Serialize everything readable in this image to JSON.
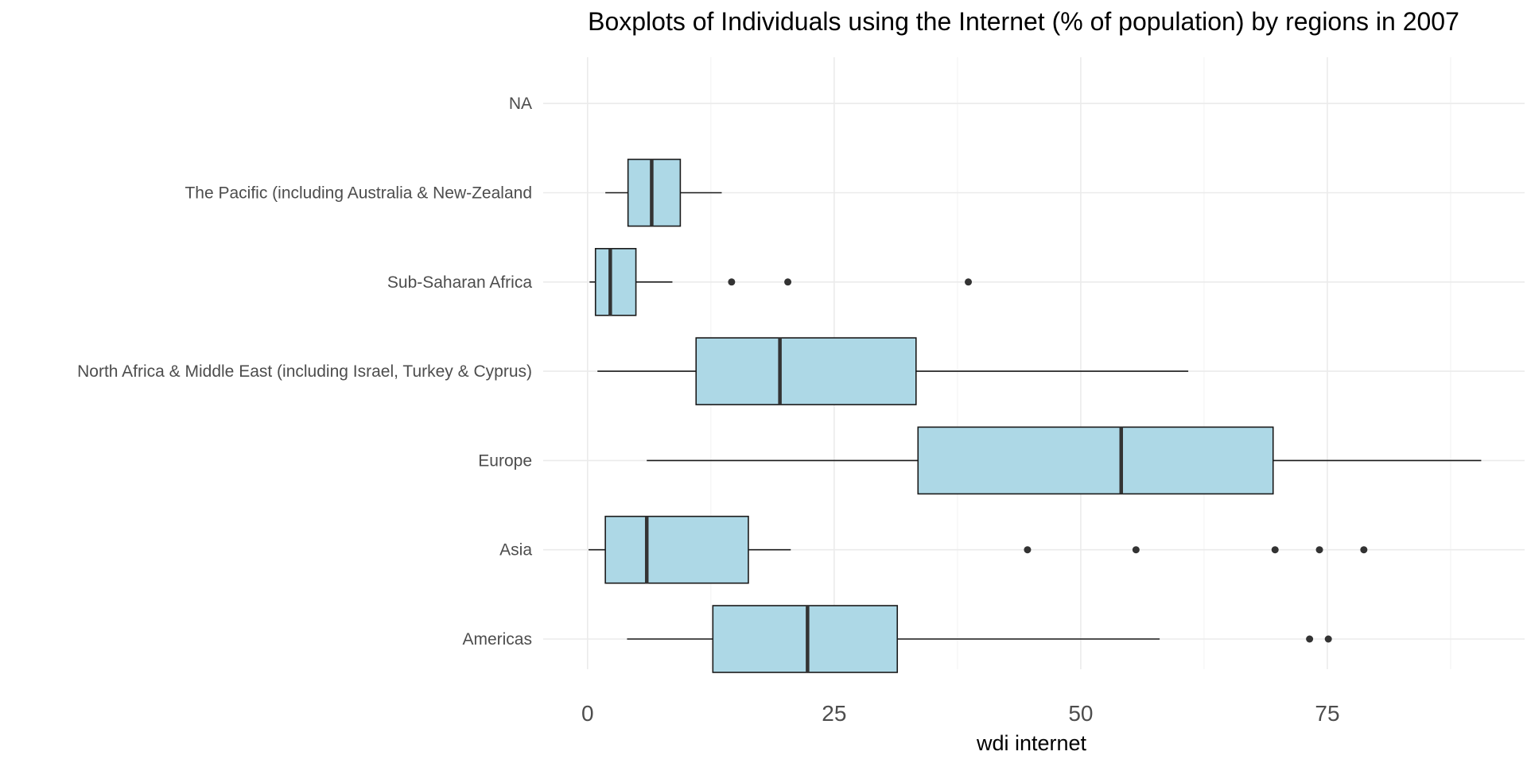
{
  "chart_data": {
    "type": "boxplot",
    "title": "Boxplots of Individuals using the Internet (% of population) by regions in 2007",
    "xlabel": "wdi internet",
    "ylabel": "",
    "orientation": "horizontal",
    "xlim": [
      -4.5,
      95
    ],
    "x_ticks": [
      0,
      25,
      50,
      75
    ],
    "x_tick_labels": [
      "0",
      "25",
      "50",
      "75"
    ],
    "x_minor_ticks": [
      12.5,
      37.5,
      62.5,
      87.5
    ],
    "grid": true,
    "categories": [
      "Americas",
      "Asia",
      "Europe",
      "North Africa & Middle East (including Israel, Turkey & Cyprus)",
      "Sub-Saharan Africa",
      "The Pacific (including Australia & New-Zealand",
      "NA"
    ],
    "boxes": [
      {
        "category": "Americas",
        "whisker_low": 4.0,
        "q1": 12.7,
        "median": 22.3,
        "q3": 31.4,
        "whisker_high": 58.0,
        "outliers": [
          73.2,
          75.1
        ]
      },
      {
        "category": "Asia",
        "whisker_low": 0.1,
        "q1": 1.8,
        "median": 6.0,
        "q3": 16.3,
        "whisker_high": 20.6,
        "outliers": [
          44.6,
          55.6,
          69.7,
          74.2,
          78.7
        ]
      },
      {
        "category": "Europe",
        "whisker_low": 6.0,
        "q1": 33.5,
        "median": 54.1,
        "q3": 69.5,
        "whisker_high": 90.6,
        "outliers": []
      },
      {
        "category": "North Africa & Middle East (including Israel, Turkey & Cyprus)",
        "whisker_low": 1.0,
        "q1": 11.0,
        "median": 19.5,
        "q3": 33.3,
        "whisker_high": 60.9,
        "outliers": []
      },
      {
        "category": "Sub-Saharan Africa",
        "whisker_low": 0.2,
        "q1": 0.8,
        "median": 2.3,
        "q3": 4.9,
        "whisker_high": 8.6,
        "outliers": [
          14.6,
          20.3,
          38.6
        ]
      },
      {
        "category": "The Pacific (including Australia & New-Zealand",
        "whisker_low": 1.8,
        "q1": 4.1,
        "median": 6.5,
        "q3": 9.4,
        "whisker_high": 13.6,
        "outliers": []
      },
      {
        "category": "NA",
        "whisker_low": null,
        "q1": null,
        "median": null,
        "q3": null,
        "whisker_high": null,
        "outliers": []
      }
    ],
    "colors": {
      "box_fill": "#add8e6",
      "box_stroke": "#1a1a1a",
      "median": "#333333",
      "whisker": "#1a1a1a",
      "outlier": "#333333",
      "grid_major": "#ebebeb",
      "grid_minor": "#f4f4f4"
    }
  }
}
